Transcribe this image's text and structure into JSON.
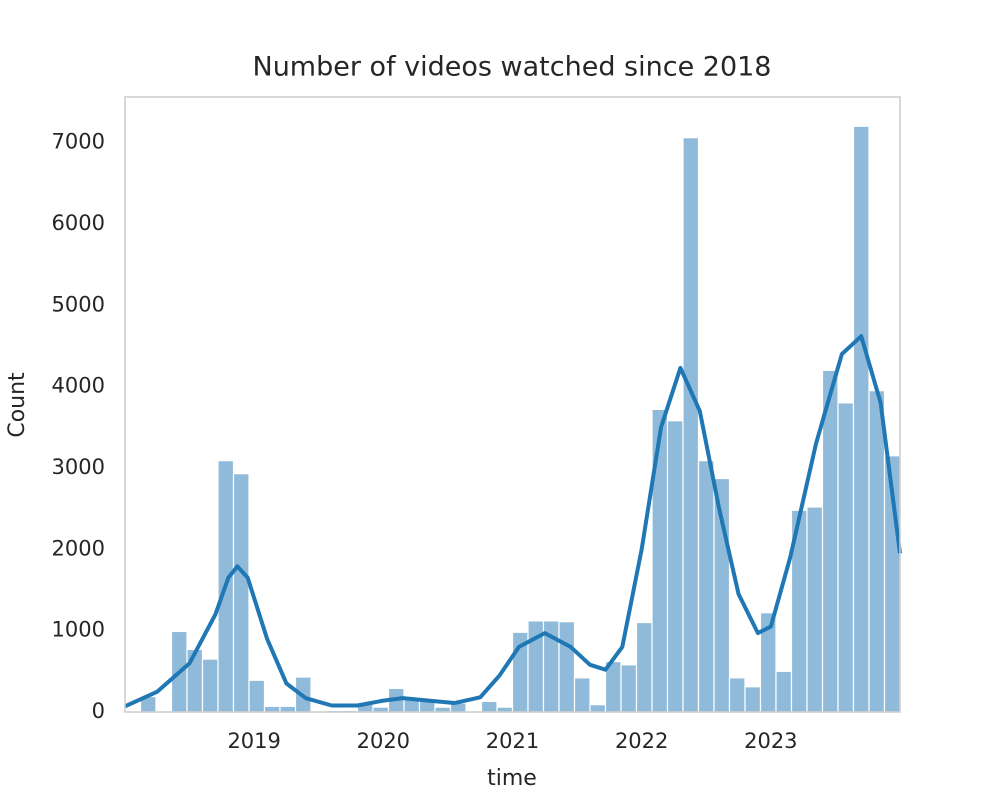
{
  "chart_data": {
    "type": "histogram",
    "title": "Number of videos watched since 2018",
    "x_label": "time",
    "y_label": "Count",
    "bins": [
      2018,
      2018.12,
      2018.24,
      2018.36,
      2018.48,
      2018.6,
      2018.72,
      2018.84,
      2018.96,
      2019.08,
      2019.2,
      2019.32,
      2019.44,
      2019.56,
      2019.68,
      2019.8,
      2019.92,
      2020.04,
      2020.16,
      2020.28,
      2020.4,
      2020.52,
      2020.64,
      2020.76,
      2020.88,
      2021.0,
      2021.12,
      2021.24,
      2021.36,
      2021.48,
      2021.6,
      2021.72,
      2021.84,
      2021.96,
      2022.08,
      2022.2,
      2022.32,
      2022.44,
      2022.56,
      2022.68,
      2022.8,
      2022.92,
      2023.04,
      2023.16,
      2023.28,
      2023.4,
      2023.52,
      2023.64,
      2023.76,
      2023.88,
      2024.0
    ],
    "counts": [
      0,
      190,
      0,
      990,
      770,
      650,
      3090,
      2930,
      390,
      70,
      70,
      430,
      10,
      20,
      20,
      100,
      60,
      290,
      180,
      160,
      60,
      110,
      0,
      130,
      60,
      980,
      1120,
      1120,
      1110,
      420,
      90,
      620,
      580,
      1100,
      3720,
      3580,
      7060,
      3090,
      2870,
      420,
      310,
      1220,
      500,
      2480,
      2520,
      4200,
      3800,
      7200,
      3950,
      3150
    ],
    "color": "#8fbad9",
    "kde": {
      "color": "#1f77b4",
      "x": [
        2018.0,
        2018.25,
        2018.5,
        2018.7,
        2018.8,
        2018.87,
        2018.95,
        2019.1,
        2019.25,
        2019.4,
        2019.6,
        2019.8,
        2020.0,
        2020.15,
        2020.35,
        2020.55,
        2020.75,
        2020.9,
        2021.05,
        2021.25,
        2021.45,
        2021.6,
        2021.72,
        2021.85,
        2022.0,
        2022.15,
        2022.3,
        2022.45,
        2022.6,
        2022.75,
        2022.9,
        2023.0,
        2023.15,
        2023.35,
        2023.55,
        2023.7,
        2023.85,
        2024.0
      ],
      "values": [
        70,
        250,
        600,
        1200,
        1650,
        1790,
        1650,
        900,
        350,
        170,
        80,
        80,
        140,
        170,
        140,
        110,
        180,
        450,
        800,
        970,
        800,
        580,
        520,
        800,
        2000,
        3500,
        4230,
        3700,
        2500,
        1450,
        970,
        1050,
        1900,
        3300,
        4400,
        4620,
        3800,
        1950
      ]
    },
    "xlim": [
      2018,
      2024
    ],
    "xticks": [
      2019,
      2020,
      2021,
      2022,
      2023
    ],
    "ylim": [
      0,
      7560
    ],
    "yticks": [
      0,
      1000,
      2000,
      3000,
      4000,
      5000,
      6000,
      7000
    ],
    "grid": false
  }
}
